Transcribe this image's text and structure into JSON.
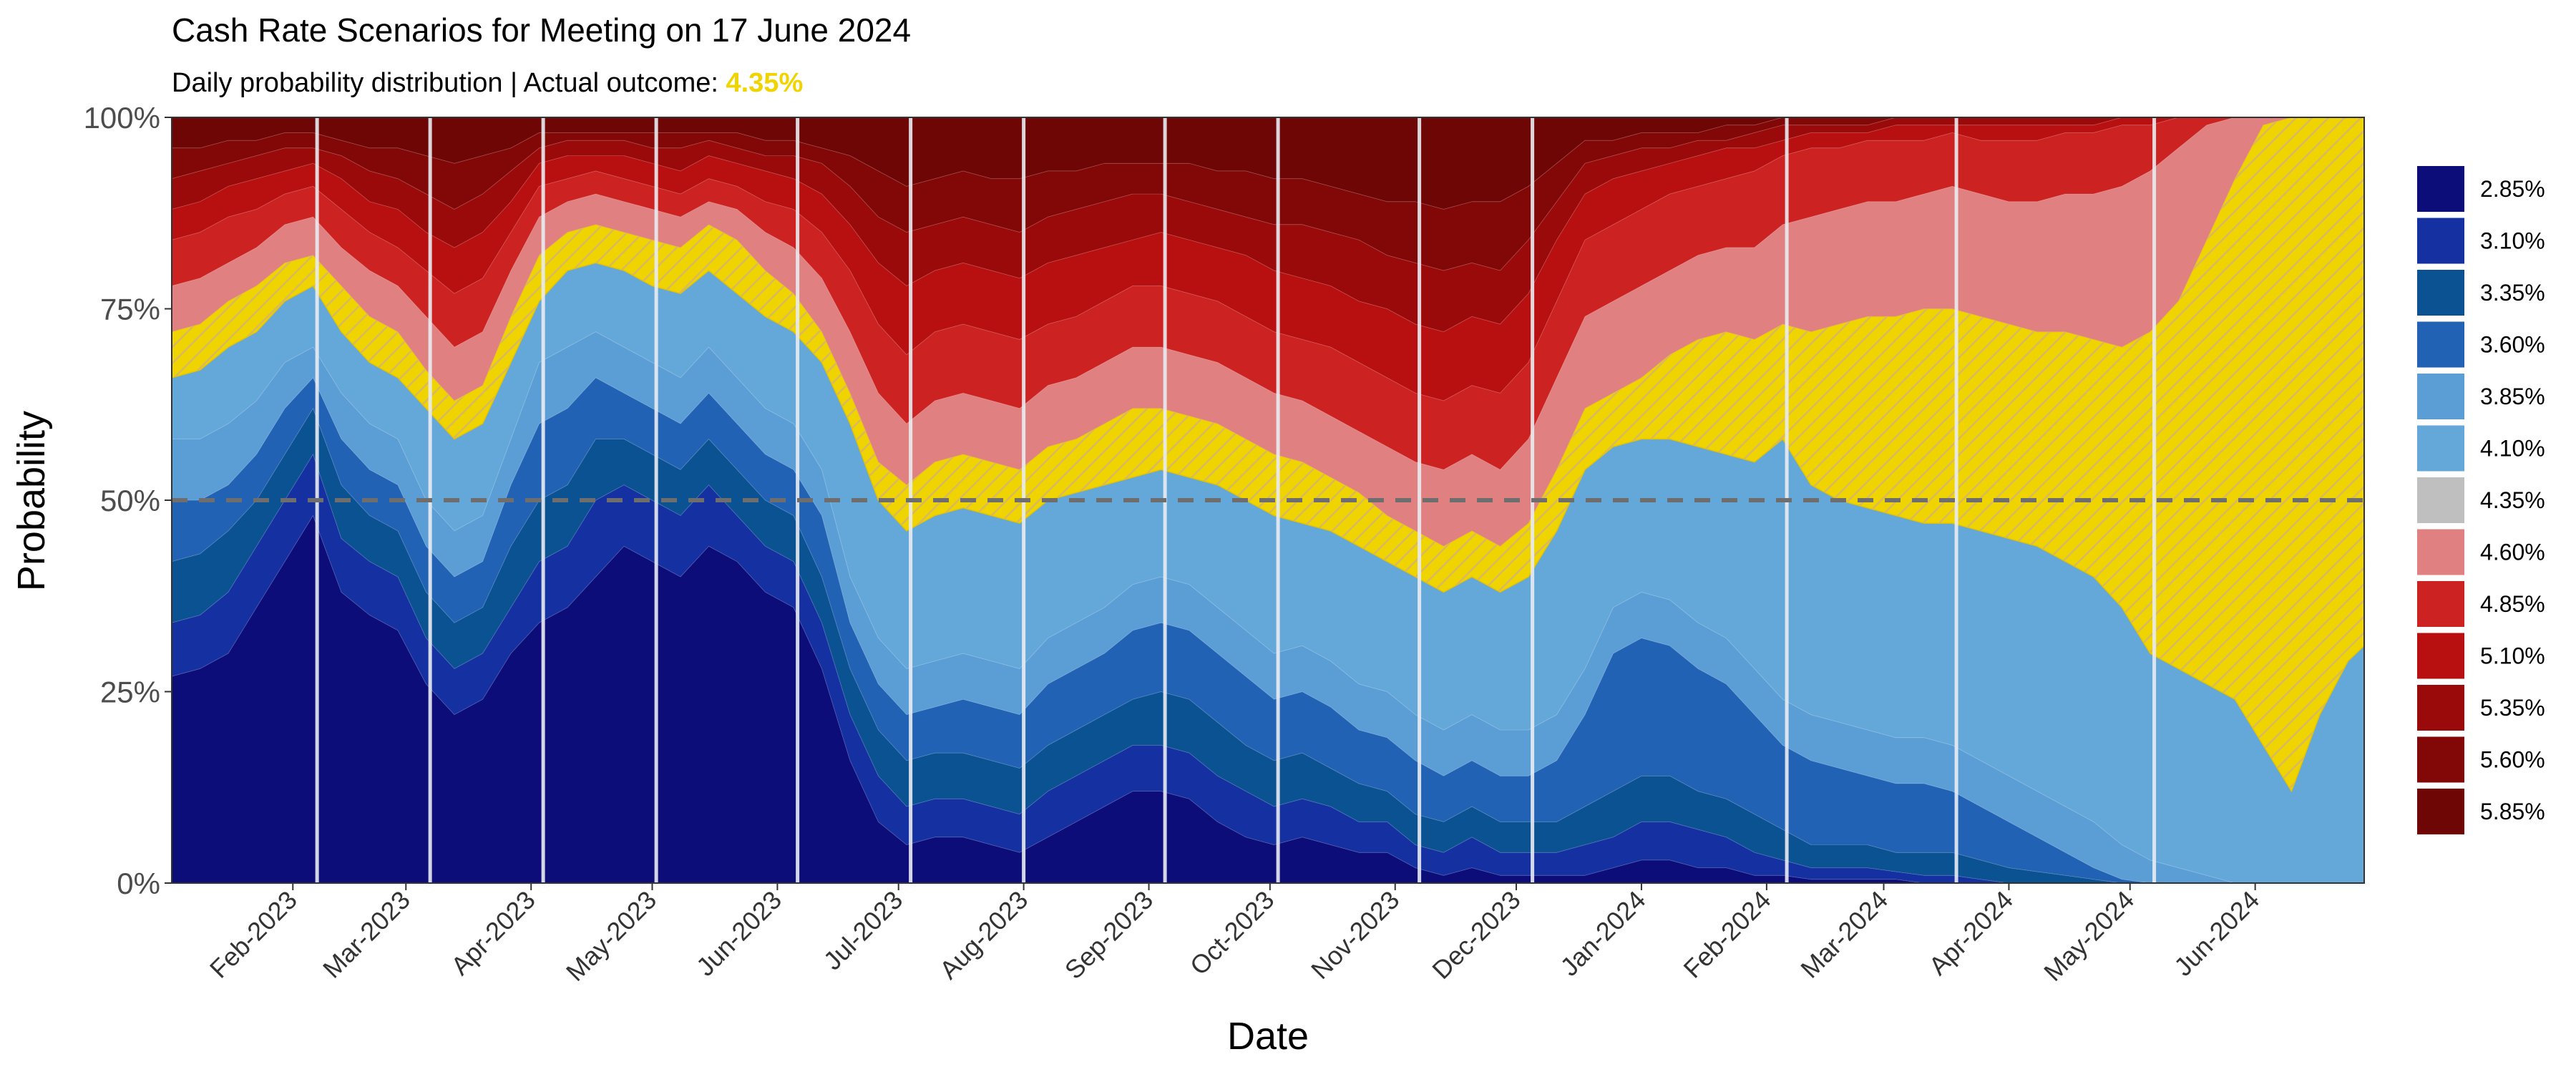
{
  "chart_data": {
    "type": "area",
    "stacked": true,
    "title": "Cash Rate Scenarios for Meeting on 17 June 2024",
    "subtitle_prefix": "Daily probability distribution | Actual outcome: ",
    "subtitle_highlight": "4.35%",
    "xlabel": "Date",
    "ylabel": "Probability",
    "ylim": [
      0,
      1
    ],
    "y_ticks": [
      0,
      0.25,
      0.5,
      0.75,
      1.0
    ],
    "y_tick_labels": [
      "0%",
      "25%",
      "50%",
      "75%",
      "100%"
    ],
    "reference_line": {
      "y": 0.5,
      "style": "dashed"
    },
    "x_start": "2023-01-02",
    "x_end": "2024-06-28",
    "x_ticks": [
      "2023-02-01",
      "2023-03-01",
      "2023-04-01",
      "2023-05-01",
      "2023-06-01",
      "2023-07-01",
      "2023-08-01",
      "2023-09-01",
      "2023-10-01",
      "2023-11-01",
      "2023-12-01",
      "2024-01-01",
      "2024-02-01",
      "2024-03-01",
      "2024-04-01",
      "2024-05-01",
      "2024-06-01"
    ],
    "x_tick_labels": [
      "Feb-2023",
      "Mar-2023",
      "Apr-2023",
      "May-2023",
      "Jun-2023",
      "Jul-2023",
      "Aug-2023",
      "Sep-2023",
      "Oct-2023",
      "Nov-2023",
      "Dec-2023",
      "Jan-2024",
      "Feb-2024",
      "Mar-2024",
      "Apr-2024",
      "May-2024",
      "Jun-2024"
    ],
    "rba_meeting_dates": [
      "2023-02-07",
      "2023-03-07",
      "2023-04-04",
      "2023-05-02",
      "2023-06-06",
      "2023-07-04",
      "2023-08-01",
      "2023-09-05",
      "2023-10-03",
      "2023-11-07",
      "2023-12-05",
      "2024-02-06",
      "2024-03-19",
      "2024-05-07"
    ],
    "actual_outcome": "4.35%",
    "legend": {
      "position": "right",
      "entries": [
        "2.85%",
        "3.10%",
        "3.35%",
        "3.60%",
        "3.85%",
        "4.10%",
        "4.35%",
        "4.60%",
        "4.85%",
        "5.10%",
        "5.35%",
        "5.60%",
        "5.85%"
      ]
    },
    "colors": [
      "#0d0d7a",
      "#1530a0",
      "#0b5292",
      "#2262b4",
      "#5b9ed6",
      "#64a8d9",
      "#f0d400",
      "#e08080",
      "#cc2222",
      "#b81010",
      "#9a0a0a",
      "#820808",
      "#6e0606"
    ],
    "dates": [
      "2023-01-02",
      "2023-01-09",
      "2023-01-16",
      "2023-01-23",
      "2023-01-30",
      "2023-02-06",
      "2023-02-13",
      "2023-02-20",
      "2023-02-27",
      "2023-03-06",
      "2023-03-13",
      "2023-03-20",
      "2023-03-27",
      "2023-04-03",
      "2023-04-10",
      "2023-04-17",
      "2023-04-24",
      "2023-05-01",
      "2023-05-08",
      "2023-05-15",
      "2023-05-22",
      "2023-05-29",
      "2023-06-05",
      "2023-06-12",
      "2023-06-19",
      "2023-06-26",
      "2023-07-03",
      "2023-07-10",
      "2023-07-17",
      "2023-07-24",
      "2023-07-31",
      "2023-08-07",
      "2023-08-14",
      "2023-08-21",
      "2023-08-28",
      "2023-09-04",
      "2023-09-11",
      "2023-09-18",
      "2023-09-25",
      "2023-10-02",
      "2023-10-09",
      "2023-10-16",
      "2023-10-23",
      "2023-10-30",
      "2023-11-06",
      "2023-11-13",
      "2023-11-20",
      "2023-11-27",
      "2023-12-04",
      "2023-12-11",
      "2023-12-18",
      "2023-12-25",
      "2024-01-01",
      "2024-01-08",
      "2024-01-15",
      "2024-01-22",
      "2024-01-29",
      "2024-02-05",
      "2024-02-12",
      "2024-02-19",
      "2024-02-26",
      "2024-03-04",
      "2024-03-11",
      "2024-03-18",
      "2024-03-25",
      "2024-04-01",
      "2024-04-08",
      "2024-04-15",
      "2024-04-22",
      "2024-04-29",
      "2024-05-06",
      "2024-05-13",
      "2024-05-20",
      "2024-05-27",
      "2024-06-03",
      "2024-06-10",
      "2024-06-17",
      "2024-06-24",
      "2024-06-28"
    ],
    "cumulative": {
      "2.85%": [
        0.27,
        0.28,
        0.3,
        0.36,
        0.42,
        0.48,
        0.38,
        0.35,
        0.33,
        0.26,
        0.22,
        0.24,
        0.3,
        0.34,
        0.36,
        0.4,
        0.44,
        0.42,
        0.4,
        0.44,
        0.42,
        0.38,
        0.36,
        0.28,
        0.16,
        0.08,
        0.05,
        0.06,
        0.06,
        0.05,
        0.04,
        0.06,
        0.08,
        0.1,
        0.12,
        0.12,
        0.11,
        0.08,
        0.06,
        0.05,
        0.06,
        0.05,
        0.04,
        0.04,
        0.02,
        0.01,
        0.02,
        0.01,
        0.01,
        0.01,
        0.01,
        0.02,
        0.03,
        0.03,
        0.02,
        0.02,
        0.01,
        0.01,
        0.005,
        0.005,
        0.005,
        0.005,
        0.0,
        0.0,
        0.0,
        0.0,
        0.0,
        0.0,
        0.0,
        0.0,
        0.0,
        0.0,
        0.0,
        0.0,
        0.0,
        0.0,
        0.0,
        0.0,
        0.0
      ],
      "3.10%": [
        0.34,
        0.35,
        0.38,
        0.44,
        0.5,
        0.56,
        0.45,
        0.42,
        0.4,
        0.32,
        0.28,
        0.3,
        0.36,
        0.42,
        0.44,
        0.5,
        0.52,
        0.5,
        0.48,
        0.52,
        0.48,
        0.44,
        0.42,
        0.34,
        0.22,
        0.14,
        0.1,
        0.11,
        0.11,
        0.1,
        0.09,
        0.12,
        0.14,
        0.16,
        0.18,
        0.18,
        0.17,
        0.14,
        0.12,
        0.1,
        0.11,
        0.1,
        0.08,
        0.08,
        0.05,
        0.04,
        0.06,
        0.04,
        0.04,
        0.04,
        0.05,
        0.06,
        0.08,
        0.08,
        0.07,
        0.06,
        0.04,
        0.03,
        0.02,
        0.02,
        0.02,
        0.015,
        0.01,
        0.01,
        0.005,
        0.0,
        0.0,
        0.0,
        0.0,
        0.0,
        0.0,
        0.0,
        0.0,
        0.0,
        0.0,
        0.0,
        0.0,
        0.0,
        0.0
      ],
      "3.35%": [
        0.42,
        0.43,
        0.46,
        0.5,
        0.56,
        0.62,
        0.52,
        0.48,
        0.46,
        0.38,
        0.34,
        0.36,
        0.44,
        0.5,
        0.52,
        0.58,
        0.58,
        0.56,
        0.54,
        0.58,
        0.54,
        0.5,
        0.48,
        0.4,
        0.28,
        0.2,
        0.16,
        0.17,
        0.17,
        0.16,
        0.15,
        0.18,
        0.2,
        0.22,
        0.24,
        0.25,
        0.24,
        0.21,
        0.18,
        0.16,
        0.17,
        0.15,
        0.13,
        0.12,
        0.09,
        0.08,
        0.1,
        0.08,
        0.08,
        0.08,
        0.1,
        0.12,
        0.14,
        0.14,
        0.12,
        0.11,
        0.09,
        0.07,
        0.05,
        0.05,
        0.05,
        0.04,
        0.04,
        0.04,
        0.03,
        0.02,
        0.015,
        0.01,
        0.005,
        0.0,
        0.0,
        0.0,
        0.0,
        0.0,
        0.0,
        0.0,
        0.0,
        0.0,
        0.0
      ],
      "3.60%": [
        0.5,
        0.5,
        0.52,
        0.56,
        0.62,
        0.66,
        0.58,
        0.54,
        0.52,
        0.44,
        0.4,
        0.42,
        0.52,
        0.6,
        0.62,
        0.66,
        0.64,
        0.62,
        0.6,
        0.64,
        0.6,
        0.56,
        0.54,
        0.48,
        0.34,
        0.26,
        0.22,
        0.23,
        0.24,
        0.23,
        0.22,
        0.26,
        0.28,
        0.3,
        0.33,
        0.34,
        0.33,
        0.3,
        0.27,
        0.24,
        0.25,
        0.23,
        0.2,
        0.19,
        0.16,
        0.14,
        0.16,
        0.14,
        0.14,
        0.16,
        0.22,
        0.3,
        0.32,
        0.31,
        0.28,
        0.26,
        0.22,
        0.18,
        0.16,
        0.15,
        0.14,
        0.13,
        0.13,
        0.12,
        0.1,
        0.08,
        0.06,
        0.04,
        0.02,
        0.005,
        0.0,
        0.0,
        0.0,
        0.0,
        0.0,
        0.0,
        0.0,
        0.0,
        0.0
      ],
      "3.85%": [
        0.58,
        0.58,
        0.6,
        0.63,
        0.68,
        0.7,
        0.64,
        0.6,
        0.58,
        0.5,
        0.46,
        0.48,
        0.58,
        0.68,
        0.7,
        0.72,
        0.7,
        0.68,
        0.66,
        0.7,
        0.66,
        0.62,
        0.6,
        0.54,
        0.4,
        0.32,
        0.28,
        0.29,
        0.3,
        0.29,
        0.28,
        0.32,
        0.34,
        0.36,
        0.39,
        0.4,
        0.39,
        0.36,
        0.33,
        0.3,
        0.31,
        0.29,
        0.26,
        0.25,
        0.22,
        0.2,
        0.22,
        0.2,
        0.2,
        0.22,
        0.28,
        0.36,
        0.38,
        0.37,
        0.34,
        0.32,
        0.28,
        0.24,
        0.22,
        0.21,
        0.2,
        0.19,
        0.19,
        0.18,
        0.16,
        0.14,
        0.12,
        0.1,
        0.08,
        0.05,
        0.03,
        0.02,
        0.01,
        0.0,
        0.0,
        0.0,
        0.0,
        0.0,
        0.0
      ],
      "4.10%": [
        0.66,
        0.67,
        0.7,
        0.72,
        0.76,
        0.78,
        0.72,
        0.68,
        0.66,
        0.62,
        0.58,
        0.6,
        0.68,
        0.76,
        0.8,
        0.81,
        0.8,
        0.78,
        0.77,
        0.8,
        0.77,
        0.74,
        0.72,
        0.68,
        0.6,
        0.5,
        0.46,
        0.48,
        0.49,
        0.48,
        0.47,
        0.5,
        0.51,
        0.52,
        0.53,
        0.54,
        0.53,
        0.52,
        0.5,
        0.48,
        0.47,
        0.46,
        0.44,
        0.42,
        0.4,
        0.38,
        0.4,
        0.38,
        0.4,
        0.46,
        0.54,
        0.57,
        0.58,
        0.58,
        0.57,
        0.56,
        0.55,
        0.58,
        0.52,
        0.5,
        0.49,
        0.48,
        0.47,
        0.47,
        0.46,
        0.45,
        0.44,
        0.42,
        0.4,
        0.36,
        0.3,
        0.28,
        0.26,
        0.24,
        0.18,
        0.12,
        0.22,
        0.29,
        0.31
      ],
      "4.35%": [
        0.72,
        0.73,
        0.76,
        0.78,
        0.81,
        0.82,
        0.78,
        0.74,
        0.72,
        0.67,
        0.63,
        0.65,
        0.74,
        0.82,
        0.85,
        0.86,
        0.85,
        0.84,
        0.83,
        0.86,
        0.84,
        0.8,
        0.77,
        0.72,
        0.64,
        0.55,
        0.52,
        0.55,
        0.56,
        0.55,
        0.54,
        0.57,
        0.58,
        0.6,
        0.62,
        0.62,
        0.61,
        0.6,
        0.58,
        0.56,
        0.55,
        0.53,
        0.51,
        0.48,
        0.46,
        0.44,
        0.46,
        0.44,
        0.47,
        0.54,
        0.62,
        0.64,
        0.66,
        0.69,
        0.71,
        0.72,
        0.71,
        0.73,
        0.72,
        0.73,
        0.74,
        0.74,
        0.75,
        0.75,
        0.74,
        0.73,
        0.72,
        0.72,
        0.71,
        0.7,
        0.72,
        0.76,
        0.84,
        0.92,
        0.99,
        1.0,
        1.0,
        1.0,
        1.0
      ],
      "4.60%": [
        0.78,
        0.79,
        0.81,
        0.83,
        0.86,
        0.87,
        0.83,
        0.8,
        0.78,
        0.74,
        0.7,
        0.72,
        0.8,
        0.87,
        0.89,
        0.9,
        0.89,
        0.88,
        0.87,
        0.89,
        0.88,
        0.85,
        0.83,
        0.79,
        0.72,
        0.64,
        0.6,
        0.63,
        0.64,
        0.63,
        0.62,
        0.65,
        0.66,
        0.68,
        0.7,
        0.7,
        0.69,
        0.68,
        0.66,
        0.64,
        0.63,
        0.61,
        0.59,
        0.57,
        0.55,
        0.54,
        0.56,
        0.54,
        0.58,
        0.66,
        0.74,
        0.76,
        0.78,
        0.8,
        0.82,
        0.83,
        0.83,
        0.86,
        0.87,
        0.88,
        0.89,
        0.89,
        0.9,
        0.91,
        0.9,
        0.89,
        0.89,
        0.9,
        0.9,
        0.91,
        0.93,
        0.96,
        0.99,
        1.0,
        1.0,
        1.0,
        1.0,
        1.0,
        1.0
      ],
      "4.85%": [
        0.84,
        0.85,
        0.87,
        0.88,
        0.9,
        0.91,
        0.88,
        0.85,
        0.83,
        0.8,
        0.77,
        0.79,
        0.85,
        0.91,
        0.92,
        0.93,
        0.92,
        0.91,
        0.9,
        0.92,
        0.91,
        0.89,
        0.88,
        0.85,
        0.8,
        0.73,
        0.69,
        0.72,
        0.73,
        0.72,
        0.71,
        0.73,
        0.74,
        0.76,
        0.78,
        0.78,
        0.77,
        0.76,
        0.74,
        0.72,
        0.71,
        0.7,
        0.68,
        0.66,
        0.64,
        0.63,
        0.65,
        0.64,
        0.68,
        0.76,
        0.84,
        0.86,
        0.88,
        0.9,
        0.91,
        0.92,
        0.93,
        0.95,
        0.96,
        0.96,
        0.97,
        0.97,
        0.97,
        0.98,
        0.97,
        0.97,
        0.97,
        0.98,
        0.98,
        0.99,
        0.99,
        1.0,
        1.0,
        1.0,
        1.0,
        1.0,
        1.0,
        1.0,
        1.0
      ],
      "5.10%": [
        0.88,
        0.89,
        0.91,
        0.92,
        0.93,
        0.94,
        0.92,
        0.89,
        0.88,
        0.85,
        0.83,
        0.85,
        0.89,
        0.94,
        0.95,
        0.95,
        0.95,
        0.94,
        0.93,
        0.95,
        0.94,
        0.93,
        0.92,
        0.9,
        0.86,
        0.81,
        0.78,
        0.8,
        0.81,
        0.8,
        0.79,
        0.81,
        0.82,
        0.83,
        0.84,
        0.85,
        0.84,
        0.83,
        0.82,
        0.8,
        0.79,
        0.78,
        0.76,
        0.75,
        0.73,
        0.72,
        0.74,
        0.73,
        0.77,
        0.84,
        0.9,
        0.92,
        0.93,
        0.94,
        0.95,
        0.96,
        0.96,
        0.97,
        0.98,
        0.98,
        0.98,
        0.99,
        0.99,
        0.99,
        0.99,
        0.99,
        0.99,
        0.99,
        0.99,
        1.0,
        1.0,
        1.0,
        1.0,
        1.0,
        1.0,
        1.0,
        1.0,
        1.0,
        1.0
      ],
      "5.35%": [
        0.92,
        0.93,
        0.94,
        0.95,
        0.96,
        0.96,
        0.95,
        0.93,
        0.92,
        0.9,
        0.88,
        0.9,
        0.93,
        0.96,
        0.97,
        0.97,
        0.97,
        0.96,
        0.96,
        0.97,
        0.96,
        0.95,
        0.95,
        0.94,
        0.91,
        0.87,
        0.85,
        0.86,
        0.87,
        0.86,
        0.85,
        0.87,
        0.88,
        0.89,
        0.9,
        0.9,
        0.89,
        0.88,
        0.87,
        0.86,
        0.86,
        0.85,
        0.84,
        0.82,
        0.81,
        0.8,
        0.81,
        0.8,
        0.84,
        0.89,
        0.94,
        0.95,
        0.96,
        0.96,
        0.97,
        0.97,
        0.98,
        0.99,
        0.99,
        0.99,
        0.99,
        1.0,
        1.0,
        1.0,
        1.0,
        1.0,
        1.0,
        1.0,
        1.0,
        1.0,
        1.0,
        1.0,
        1.0,
        1.0,
        1.0,
        1.0,
        1.0,
        1.0,
        1.0
      ],
      "5.60%": [
        0.96,
        0.96,
        0.97,
        0.97,
        0.98,
        0.98,
        0.97,
        0.96,
        0.96,
        0.95,
        0.94,
        0.95,
        0.96,
        0.98,
        0.98,
        0.98,
        0.98,
        0.98,
        0.98,
        0.98,
        0.98,
        0.97,
        0.97,
        0.96,
        0.95,
        0.93,
        0.91,
        0.92,
        0.93,
        0.92,
        0.92,
        0.93,
        0.93,
        0.94,
        0.94,
        0.94,
        0.94,
        0.93,
        0.93,
        0.92,
        0.92,
        0.91,
        0.9,
        0.89,
        0.89,
        0.88,
        0.89,
        0.89,
        0.91,
        0.94,
        0.97,
        0.97,
        0.98,
        0.98,
        0.98,
        0.99,
        0.99,
        1.0,
        1.0,
        1.0,
        1.0,
        1.0,
        1.0,
        1.0,
        1.0,
        1.0,
        1.0,
        1.0,
        1.0,
        1.0,
        1.0,
        1.0,
        1.0,
        1.0,
        1.0,
        1.0,
        1.0,
        1.0,
        1.0
      ],
      "5.85%": [
        1.0,
        1.0,
        1.0,
        1.0,
        1.0,
        1.0,
        1.0,
        1.0,
        1.0,
        1.0,
        1.0,
        1.0,
        1.0,
        1.0,
        1.0,
        1.0,
        1.0,
        1.0,
        1.0,
        1.0,
        1.0,
        1.0,
        1.0,
        1.0,
        1.0,
        1.0,
        1.0,
        1.0,
        1.0,
        1.0,
        1.0,
        1.0,
        1.0,
        1.0,
        1.0,
        1.0,
        1.0,
        1.0,
        1.0,
        1.0,
        1.0,
        1.0,
        1.0,
        1.0,
        1.0,
        1.0,
        1.0,
        1.0,
        1.0,
        1.0,
        1.0,
        1.0,
        1.0,
        1.0,
        1.0,
        1.0,
        1.0,
        1.0,
        1.0,
        1.0,
        1.0,
        1.0,
        1.0,
        1.0,
        1.0,
        1.0,
        1.0,
        1.0,
        1.0,
        1.0,
        1.0,
        1.0,
        1.0,
        1.0,
        1.0,
        1.0,
        1.0,
        1.0,
        1.0
      ]
    }
  }
}
